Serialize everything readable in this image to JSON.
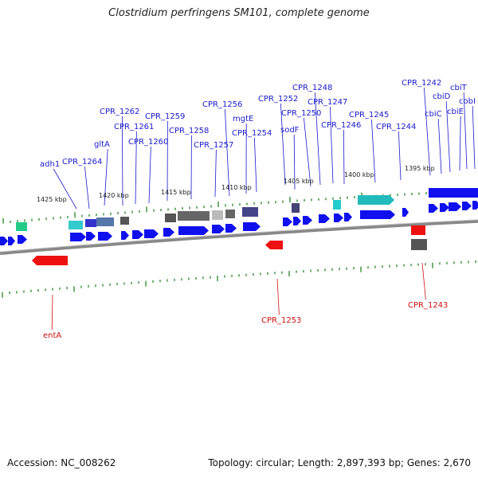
{
  "title": "Clostridium perfringens SM101, complete genome",
  "footer": {
    "accession": "Accession: NC_008262",
    "stats": "Topology: circular; Length: 2,897,393 bp; Genes: 2,670"
  },
  "colors": {
    "forward_label": "#1a1acc",
    "reverse_label": "#cc1111",
    "tick": "#228822",
    "gene_blue": "#1010ee",
    "gene_red": "#ee1111",
    "gene_gray": "#666666",
    "gene_teal": "#22bbbb",
    "backbone": "#888888"
  },
  "scale_labels": [
    "1425 kbp",
    "1420 kbp",
    "1415 kbp",
    "1410 kbp",
    "1405 kbp",
    "1400 kbp",
    "1395 kbp"
  ],
  "forward_labels": [
    "adh1",
    "CPR_1264",
    "gltA",
    "CPR_1262",
    "CPR_1261",
    "CPR_1260",
    "CPR_1259",
    "CPR_1258",
    "CPR_1257",
    "CPR_1256",
    "mgtE",
    "CPR_1254",
    "CPR_1252",
    "sodF",
    "CPR_1250",
    "CPR_1248",
    "CPR_1247",
    "CPR_1246",
    "CPR_1245",
    "CPR_1244",
    "CPR_1242",
    "cbiC",
    "cbiD",
    "cbiE",
    "cbiT",
    "cobI"
  ],
  "reverse_labels": [
    "entA",
    "CPR_1253",
    "CPR_1243"
  ]
}
